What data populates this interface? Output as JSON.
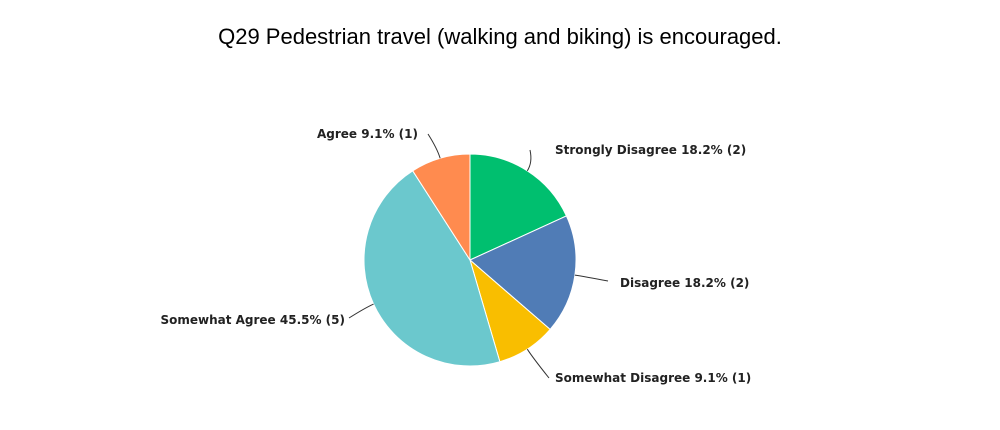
{
  "chart_data": {
    "type": "pie",
    "title": "Q29 Pedestrian travel (walking and biking) is encouraged.",
    "slices": [
      {
        "label": "Strongly Disagree",
        "percent": 18.2,
        "count": 2,
        "display": "Strongly Disagree 18.2% (2)",
        "color": "#00BF6F"
      },
      {
        "label": "Disagree",
        "percent": 18.2,
        "count": 2,
        "display": "Disagree 18.2% (2)",
        "color": "#507CB6"
      },
      {
        "label": "Somewhat Disagree",
        "percent": 9.1,
        "count": 1,
        "display": "Somewhat Disagree 9.1% (1)",
        "color": "#F9BE00"
      },
      {
        "label": "Somewhat Agree",
        "percent": 45.5,
        "count": 5,
        "display": "Somewhat Agree 45.5% (5)",
        "color": "#6BC8CD"
      },
      {
        "label": "Agree",
        "percent": 9.1,
        "count": 1,
        "display": "Agree 9.1% (1)",
        "color": "#FF8B4F"
      }
    ]
  }
}
